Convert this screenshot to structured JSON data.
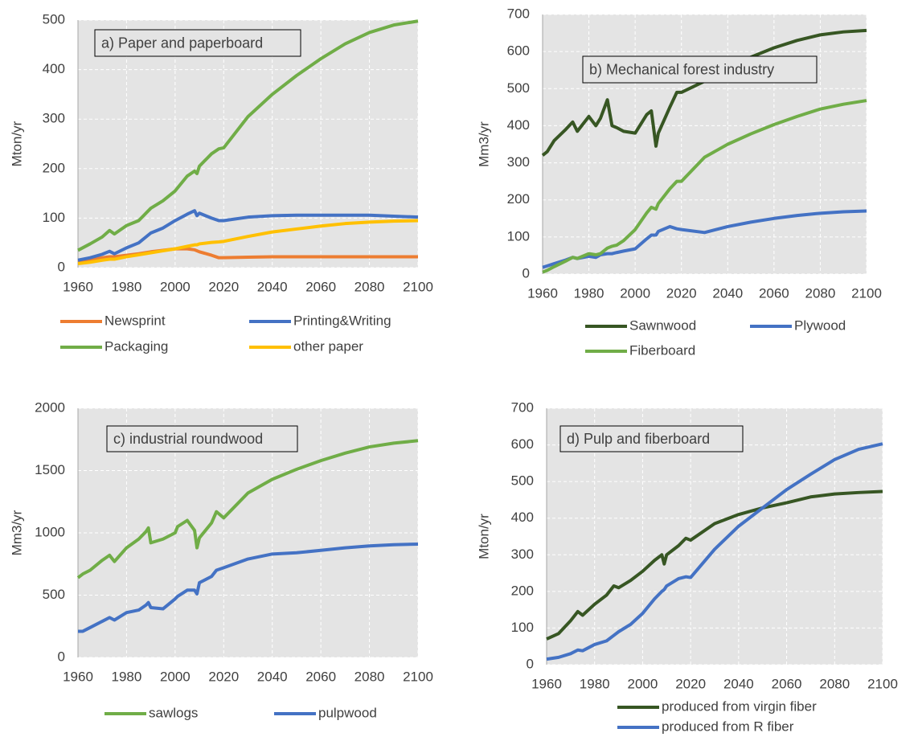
{
  "chart_data": [
    {
      "type": "line",
      "annotation": "a) Paper and paperboard",
      "ylabel": "Mton/yr",
      "x": [
        1960,
        1965,
        1970,
        1973,
        1975,
        1980,
        1985,
        1990,
        1995,
        2000,
        2005,
        2008,
        2009,
        2010,
        2015,
        2018,
        2020,
        2030,
        2040,
        2050,
        2060,
        2070,
        2080,
        2090,
        2100
      ],
      "xlim": [
        1960,
        2100
      ],
      "xticks": [
        1960,
        1980,
        2000,
        2020,
        2040,
        2060,
        2080,
        2100
      ],
      "ylim": [
        0,
        500
      ],
      "yticks": [
        0,
        100,
        200,
        300,
        400,
        500
      ],
      "grid": true,
      "series": [
        {
          "name": "Newsprint",
          "color": "#ed7d31",
          "values": [
            12,
            16,
            20,
            22,
            22,
            25,
            28,
            32,
            35,
            38,
            38,
            36,
            34,
            32,
            25,
            20,
            20,
            21,
            22,
            22,
            22,
            22,
            22,
            22,
            22
          ]
        },
        {
          "name": "Printing&Writing",
          "color": "#4472c4",
          "values": [
            15,
            20,
            27,
            33,
            28,
            40,
            50,
            70,
            80,
            95,
            108,
            115,
            105,
            110,
            100,
            95,
            95,
            102,
            105,
            106,
            106,
            106,
            106,
            104,
            102
          ]
        },
        {
          "name": "Packaging",
          "color": "#70ad47",
          "values": [
            35,
            48,
            62,
            75,
            68,
            85,
            95,
            120,
            135,
            155,
            185,
            195,
            190,
            205,
            230,
            240,
            242,
            305,
            350,
            388,
            422,
            452,
            475,
            490,
            498
          ]
        },
        {
          "name": "other paper",
          "color": "#ffc000",
          "values": [
            8,
            11,
            15,
            17,
            17,
            22,
            26,
            30,
            34,
            38,
            43,
            46,
            46,
            48,
            51,
            52,
            53,
            63,
            72,
            78,
            84,
            89,
            92,
            94,
            95
          ]
        }
      ]
    },
    {
      "type": "line",
      "annotation": "b) Mechanical forest industry",
      "ylabel": "Mm3/yr",
      "x": [
        1960,
        1962,
        1965,
        1970,
        1973,
        1975,
        1980,
        1983,
        1985,
        1988,
        1990,
        1992,
        1995,
        2000,
        2005,
        2007,
        2009,
        2010,
        2015,
        2018,
        2020,
        2030,
        2040,
        2050,
        2060,
        2070,
        2080,
        2090,
        2100
      ],
      "xlim": [
        1960,
        2100
      ],
      "xticks": [
        1960,
        1980,
        2000,
        2020,
        2040,
        2060,
        2080,
        2100
      ],
      "ylim": [
        0,
        700
      ],
      "yticks": [
        0,
        100,
        200,
        300,
        400,
        500,
        600,
        700
      ],
      "grid": true,
      "series": [
        {
          "name": "Sawnwood",
          "color": "#375623",
          "values": [
            320,
            330,
            360,
            390,
            410,
            385,
            425,
            400,
            420,
            470,
            400,
            395,
            385,
            380,
            430,
            440,
            345,
            380,
            450,
            490,
            490,
            520,
            555,
            585,
            610,
            630,
            645,
            653,
            657
          ]
        },
        {
          "name": "Plywood",
          "color": "#4472c4",
          "values": [
            18,
            22,
            28,
            38,
            45,
            42,
            48,
            45,
            52,
            55,
            55,
            58,
            62,
            68,
            95,
            105,
            105,
            115,
            128,
            122,
            120,
            112,
            128,
            140,
            150,
            158,
            164,
            168,
            170
          ]
        },
        {
          "name": "Fiberboard",
          "color": "#70ad47",
          "values": [
            5,
            10,
            20,
            35,
            45,
            42,
            55,
            52,
            55,
            70,
            75,
            78,
            90,
            120,
            165,
            180,
            175,
            190,
            230,
            250,
            250,
            315,
            350,
            378,
            403,
            425,
            445,
            458,
            468
          ]
        }
      ]
    },
    {
      "type": "line",
      "annotation": "c) industrial roundwood",
      "ylabel": "Mm3/yr",
      "x": [
        1960,
        1962,
        1965,
        1970,
        1973,
        1975,
        1980,
        1985,
        1988,
        1989,
        1990,
        1995,
        2000,
        2001,
        2005,
        2008,
        2009,
        2010,
        2015,
        2017,
        2020,
        2030,
        2040,
        2050,
        2060,
        2070,
        2080,
        2090,
        2100
      ],
      "xlim": [
        1960,
        2100
      ],
      "xticks": [
        1960,
        1980,
        2000,
        2020,
        2040,
        2060,
        2080,
        2100
      ],
      "ylim": [
        0,
        2000
      ],
      "yticks": [
        0,
        500,
        1000,
        1500,
        2000
      ],
      "grid": true,
      "series": [
        {
          "name": "sawlogs",
          "color": "#70ad47",
          "values": [
            640,
            670,
            700,
            780,
            820,
            770,
            880,
            950,
            1010,
            1040,
            920,
            950,
            1000,
            1050,
            1100,
            1020,
            880,
            960,
            1080,
            1170,
            1120,
            1320,
            1430,
            1510,
            1580,
            1640,
            1690,
            1720,
            1740
          ]
        },
        {
          "name": "pulpwood",
          "color": "#4472c4",
          "values": [
            210,
            210,
            240,
            290,
            320,
            300,
            360,
            380,
            420,
            440,
            400,
            390,
            470,
            490,
            540,
            540,
            510,
            600,
            650,
            700,
            720,
            790,
            830,
            840,
            860,
            880,
            895,
            905,
            910
          ]
        }
      ]
    },
    {
      "type": "line",
      "annotation": "d) Pulp and fiberboard",
      "ylabel": "Mton/yr",
      "x": [
        1960,
        1965,
        1970,
        1973,
        1975,
        1980,
        1985,
        1988,
        1990,
        1995,
        2000,
        2005,
        2008,
        2009,
        2010,
        2015,
        2018,
        2020,
        2030,
        2040,
        2050,
        2060,
        2070,
        2080,
        2090,
        2100
      ],
      "xlim": [
        1960,
        2100
      ],
      "xticks": [
        1960,
        1980,
        2000,
        2020,
        2040,
        2060,
        2080,
        2100
      ],
      "ylim": [
        0,
        700
      ],
      "yticks": [
        0,
        100,
        200,
        300,
        400,
        500,
        600,
        700
      ],
      "grid": true,
      "series": [
        {
          "name": "produced from virgin fiber",
          "color": "#375623",
          "values": [
            70,
            85,
            120,
            145,
            135,
            165,
            190,
            215,
            210,
            230,
            255,
            285,
            300,
            275,
            300,
            325,
            345,
            340,
            385,
            410,
            428,
            442,
            458,
            466,
            470,
            473
          ]
        },
        {
          "name": "produced from R fiber",
          "color": "#4472c4",
          "values": [
            15,
            20,
            30,
            40,
            38,
            55,
            65,
            80,
            90,
            110,
            140,
            180,
            200,
            205,
            215,
            235,
            240,
            238,
            315,
            378,
            428,
            478,
            520,
            560,
            588,
            603
          ]
        }
      ]
    }
  ]
}
